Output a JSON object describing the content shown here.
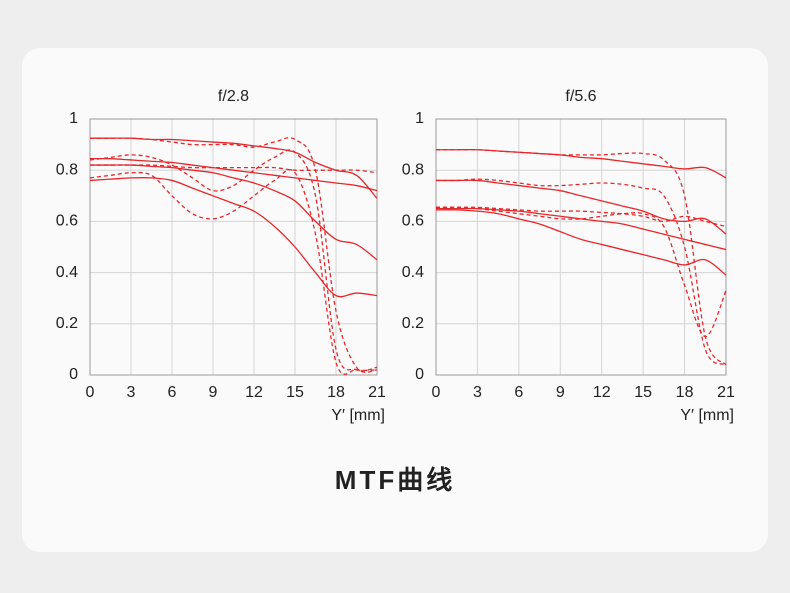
{
  "title": "MTF曲线",
  "chart_data": [
    {
      "type": "line",
      "title": "f/2.8",
      "x_label": "Y′ [mm]",
      "x": [
        0,
        1.5,
        3,
        4.5,
        6,
        7.5,
        9,
        10.5,
        12,
        13.5,
        15,
        16.5,
        18,
        19.5,
        21
      ],
      "xlim": [
        0,
        21
      ],
      "ylim": [
        0,
        1
      ],
      "xticks": [
        0,
        3,
        6,
        9,
        12,
        15,
        18,
        21
      ],
      "yticks": [
        0,
        0.2,
        0.4,
        0.6,
        0.8,
        1
      ],
      "grid": true,
      "series": [
        {
          "color": "#e8262a",
          "dashed": false,
          "values": [
            0.925,
            0.925,
            0.925,
            0.92,
            0.92,
            0.915,
            0.91,
            0.905,
            0.895,
            0.885,
            0.87,
            0.83,
            0.8,
            0.78,
            0.69
          ]
        },
        {
          "color": "#e8262a",
          "dashed": false,
          "values": [
            0.845,
            0.845,
            0.84,
            0.835,
            0.83,
            0.82,
            0.81,
            0.8,
            0.79,
            0.78,
            0.77,
            0.76,
            0.75,
            0.74,
            0.72
          ]
        },
        {
          "color": "#e8262a",
          "dashed": false,
          "values": [
            0.82,
            0.82,
            0.82,
            0.815,
            0.81,
            0.8,
            0.79,
            0.77,
            0.75,
            0.72,
            0.68,
            0.6,
            0.53,
            0.51,
            0.45
          ]
        },
        {
          "color": "#e8262a",
          "dashed": false,
          "values": [
            0.76,
            0.765,
            0.77,
            0.77,
            0.76,
            0.73,
            0.7,
            0.67,
            0.64,
            0.58,
            0.5,
            0.4,
            0.31,
            0.32,
            0.31
          ]
        },
        {
          "color": "#e8262a",
          "dashed": true,
          "values": [
            0.925,
            0.925,
            0.925,
            0.92,
            0.91,
            0.9,
            0.9,
            0.9,
            0.89,
            0.91,
            0.92,
            0.8,
            0.25,
            0.03,
            0.02
          ]
        },
        {
          "color": "#e8262a",
          "dashed": true,
          "values": [
            0.82,
            0.82,
            0.82,
            0.82,
            0.815,
            0.81,
            0.81,
            0.81,
            0.81,
            0.81,
            0.8,
            0.8,
            0.8,
            0.8,
            0.79
          ]
        },
        {
          "color": "#e8262a",
          "dashed": true,
          "values": [
            0.84,
            0.85,
            0.86,
            0.85,
            0.82,
            0.77,
            0.72,
            0.74,
            0.8,
            0.85,
            0.87,
            0.7,
            0.1,
            0.02,
            0.03
          ]
        },
        {
          "color": "#e8262a",
          "dashed": true,
          "values": [
            0.77,
            0.78,
            0.79,
            0.78,
            0.7,
            0.63,
            0.61,
            0.64,
            0.7,
            0.76,
            0.79,
            0.55,
            0.05,
            0.02,
            0.02
          ]
        }
      ]
    },
    {
      "type": "line",
      "title": "f/5.6",
      "x_label": "Y′ [mm]",
      "x": [
        0,
        1.5,
        3,
        4.5,
        6,
        7.5,
        9,
        10.5,
        12,
        13.5,
        15,
        16.5,
        18,
        19.5,
        21
      ],
      "xlim": [
        0,
        21
      ],
      "ylim": [
        0,
        1
      ],
      "xticks": [
        0,
        3,
        6,
        9,
        12,
        15,
        18,
        21
      ],
      "yticks": [
        0,
        0.2,
        0.4,
        0.6,
        0.8,
        1
      ],
      "grid": true,
      "series": [
        {
          "color": "#e8262a",
          "dashed": false,
          "values": [
            0.88,
            0.88,
            0.88,
            0.875,
            0.87,
            0.865,
            0.86,
            0.85,
            0.845,
            0.835,
            0.825,
            0.815,
            0.805,
            0.81,
            0.77
          ]
        },
        {
          "color": "#e8262a",
          "dashed": false,
          "values": [
            0.76,
            0.76,
            0.76,
            0.75,
            0.74,
            0.73,
            0.72,
            0.7,
            0.68,
            0.66,
            0.64,
            0.61,
            0.6,
            0.61,
            0.55
          ]
        },
        {
          "color": "#e8262a",
          "dashed": false,
          "values": [
            0.65,
            0.65,
            0.65,
            0.645,
            0.64,
            0.63,
            0.62,
            0.61,
            0.6,
            0.59,
            0.57,
            0.55,
            0.53,
            0.51,
            0.49
          ]
        },
        {
          "color": "#e8262a",
          "dashed": false,
          "values": [
            0.645,
            0.645,
            0.64,
            0.63,
            0.61,
            0.59,
            0.56,
            0.53,
            0.51,
            0.49,
            0.47,
            0.45,
            0.43,
            0.45,
            0.39
          ]
        },
        {
          "color": "#e8262a",
          "dashed": true,
          "values": [
            0.88,
            0.88,
            0.88,
            0.875,
            0.87,
            0.865,
            0.86,
            0.86,
            0.86,
            0.865,
            0.865,
            0.84,
            0.7,
            0.15,
            0.04
          ]
        },
        {
          "color": "#e8262a",
          "dashed": true,
          "values": [
            0.76,
            0.76,
            0.765,
            0.76,
            0.75,
            0.74,
            0.74,
            0.745,
            0.75,
            0.745,
            0.73,
            0.7,
            0.5,
            0.1,
            0.04
          ]
        },
        {
          "color": "#e8262a",
          "dashed": true,
          "values": [
            0.655,
            0.655,
            0.655,
            0.65,
            0.645,
            0.64,
            0.64,
            0.64,
            0.635,
            0.63,
            0.62,
            0.6,
            0.62,
            0.6,
            0.58
          ]
        },
        {
          "color": "#e8262a",
          "dashed": true,
          "values": [
            0.655,
            0.655,
            0.65,
            0.64,
            0.63,
            0.62,
            0.61,
            0.61,
            0.62,
            0.63,
            0.63,
            0.58,
            0.35,
            0.15,
            0.33
          ]
        }
      ]
    }
  ]
}
